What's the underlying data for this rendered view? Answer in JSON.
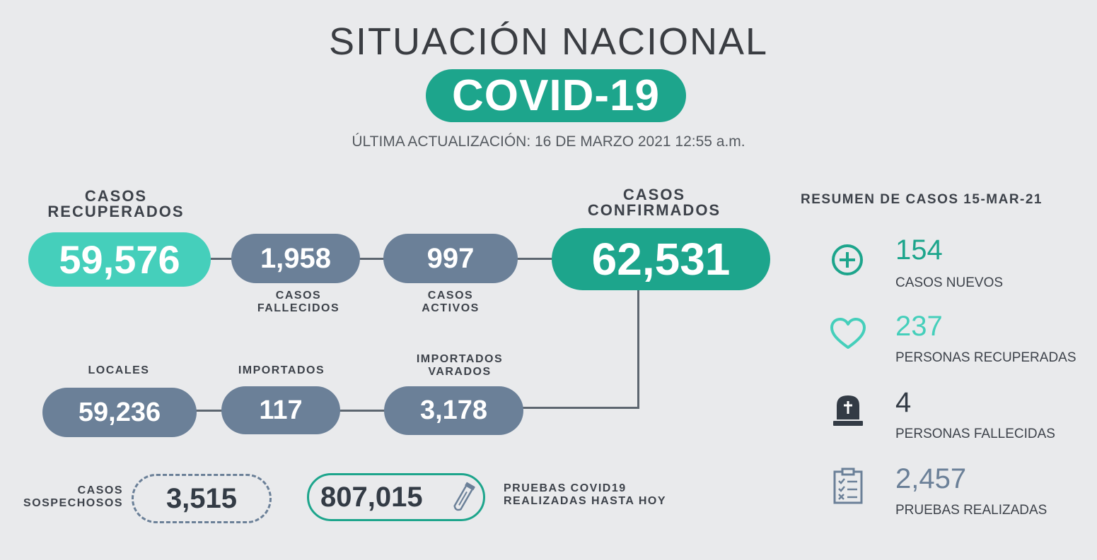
{
  "header": {
    "title": "SITUACIÓN NACIONAL",
    "badge": "COVID-19",
    "updated": "ÚLTIMA ACTUALIZACIÓN: 16 DE MARZO 2021 12:55 a.m."
  },
  "main": {
    "recuperados": {
      "label_line1": "CASOS",
      "label_line2": "RECUPERADOS",
      "value": "59,576"
    },
    "fallecidos": {
      "label_line1": "CASOS",
      "label_line2": "FALLECIDOS",
      "value": "1,958"
    },
    "activos": {
      "label_line1": "CASOS",
      "label_line2": "ACTIVOS",
      "value": "997"
    },
    "confirmados": {
      "label_line1": "CASOS",
      "label_line2": "CONFIRMADOS",
      "value": "62,531"
    },
    "locales": {
      "label": "LOCALES",
      "value": "59,236"
    },
    "importados": {
      "label": "IMPORTADOS",
      "value": "117"
    },
    "varados": {
      "label_line1": "IMPORTADOS",
      "label_line2": "VARADOS",
      "value": "3,178"
    },
    "sospechosos": {
      "label_line1": "CASOS",
      "label_line2": "SOSPECHOSOS",
      "value": "3,515"
    },
    "pruebas": {
      "label_line1": "PRUEBAS COVID19",
      "label_line2": "REALIZADAS HASTA HOY",
      "value": "807,015"
    }
  },
  "summary": {
    "title": "RESUMEN DE CASOS 15-MAR-21",
    "items": [
      {
        "value": "154",
        "label": "CASOS NUEVOS",
        "icon": "plus-circle-icon",
        "color": "#1da58c"
      },
      {
        "value": "237",
        "label": "PERSONAS RECUPERADAS",
        "icon": "heart-icon",
        "color": "#45cfbb"
      },
      {
        "value": "4",
        "label": "PERSONAS FALLECIDAS",
        "icon": "tombstone-icon",
        "color": "#333b45"
      },
      {
        "value": "2,457",
        "label": "PRUEBAS REALIZADAS",
        "icon": "clipboard-icon",
        "color": "#6b8098"
      }
    ]
  },
  "colors": {
    "teal": "#1da58c",
    "mint": "#45cfbb",
    "slate": "#6b8098",
    "background": "#e9eaec"
  }
}
